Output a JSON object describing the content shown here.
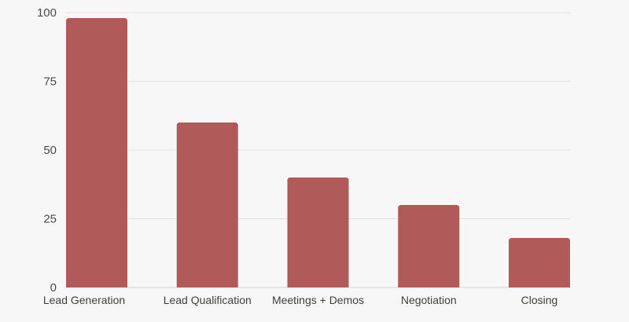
{
  "chart_data": {
    "type": "bar",
    "title": "",
    "xlabel": "",
    "ylabel": "",
    "categories": [
      "Lead Generation",
      "Lead Qualification",
      "Meetings + Demos",
      "Negotiation",
      "Closing"
    ],
    "values": [
      98,
      60,
      40,
      30,
      18
    ],
    "ylim": [
      0,
      100
    ],
    "yticks": [
      0,
      25,
      50,
      75,
      100
    ],
    "grid": true,
    "legend": "none",
    "bar_color": "#b05b5a",
    "background": "#f7f7f7"
  }
}
